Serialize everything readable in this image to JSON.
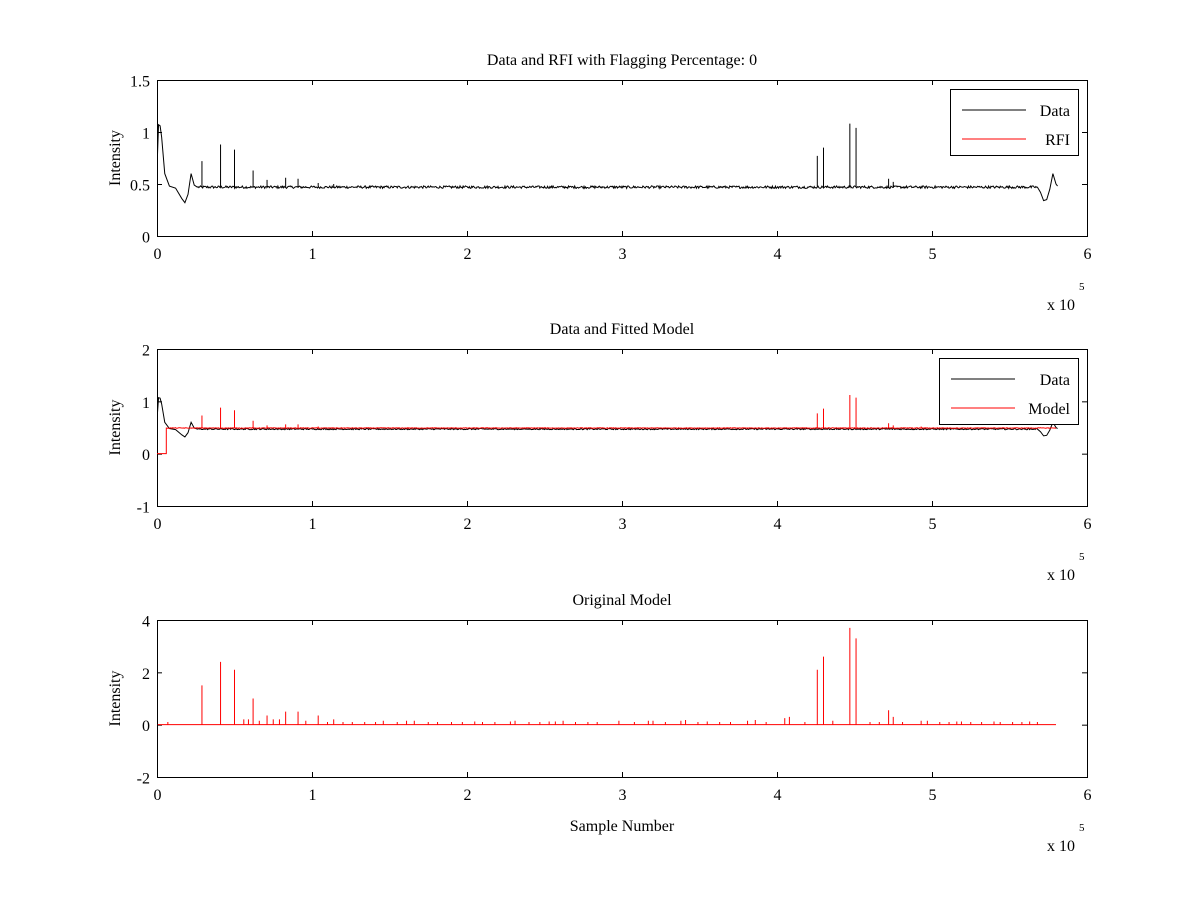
{
  "chart_data": [
    {
      "type": "line",
      "title": "Data and RFI with Flagging Percentage: 0",
      "xlabel": "",
      "ylabel": "Intensity",
      "xlim": [
        0,
        600000
      ],
      "ylim": [
        0,
        1.5
      ],
      "xticks": [
        0,
        1,
        2,
        3,
        4,
        5,
        6
      ],
      "xtick_labels": [
        "0",
        "1",
        "2",
        "3",
        "4",
        "5",
        "6"
      ],
      "yticks": [
        0,
        0.5,
        1,
        1.5
      ],
      "ytick_labels": [
        "0",
        "0.5",
        "1",
        "1.5"
      ],
      "x_exponent_base": "x 10",
      "x_exponent_power": "5",
      "legend": {
        "position": "top-right",
        "entries": [
          "Data",
          "RFI"
        ]
      },
      "series": [
        {
          "name": "Data",
          "color": "#000000",
          "baseline": 0.47,
          "start_curve": [
            [
              0,
              0.65
            ],
            [
              1000,
              1.07
            ],
            [
              2000,
              1.06
            ],
            [
              3000,
              0.95
            ],
            [
              5000,
              0.6
            ],
            [
              8000,
              0.48
            ],
            [
              12000,
              0.46
            ],
            [
              16000,
              0.36
            ],
            [
              18000,
              0.32
            ],
            [
              20000,
              0.4
            ],
            [
              22000,
              0.6
            ],
            [
              24000,
              0.49
            ],
            [
              26000,
              0.47
            ]
          ],
          "end_curve": [
            [
              568000,
              0.47
            ],
            [
              570000,
              0.42
            ],
            [
              572000,
              0.34
            ],
            [
              574000,
              0.35
            ],
            [
              576000,
              0.45
            ],
            [
              578000,
              0.6
            ],
            [
              580000,
              0.5
            ],
            [
              581000,
              0.48
            ]
          ],
          "x_end": 580000,
          "spikes": [
            [
              29000,
              0.72
            ],
            [
              41000,
              0.88
            ],
            [
              50000,
              0.83
            ],
            [
              62000,
              0.63
            ],
            [
              71000,
              0.54
            ],
            [
              83000,
              0.56
            ],
            [
              91000,
              0.55
            ],
            [
              104000,
              0.51
            ],
            [
              114000,
              0.5
            ],
            [
              426000,
              0.77
            ],
            [
              430000,
              0.85
            ],
            [
              447000,
              1.08
            ],
            [
              451000,
              1.04
            ],
            [
              472000,
              0.55
            ],
            [
              475000,
              0.52
            ]
          ]
        },
        {
          "name": "RFI",
          "color": "#ff0000",
          "values": []
        }
      ]
    },
    {
      "type": "line",
      "title": "Data and Fitted Model",
      "xlabel": "",
      "ylabel": "Intensity",
      "xlim": [
        0,
        600000
      ],
      "ylim": [
        -1,
        2
      ],
      "xticks": [
        0,
        1,
        2,
        3,
        4,
        5,
        6
      ],
      "xtick_labels": [
        "0",
        "1",
        "2",
        "3",
        "4",
        "5",
        "6"
      ],
      "yticks": [
        -1,
        0,
        1,
        2
      ],
      "ytick_labels": [
        "-1",
        "0",
        "1",
        "2"
      ],
      "x_exponent_base": "x 10",
      "x_exponent_power": "5",
      "legend": {
        "position": "top-right",
        "entries": [
          "Data",
          "Model"
        ]
      },
      "series": [
        {
          "name": "Data",
          "color": "#000000",
          "baseline": 0.47,
          "start_curve": [
            [
              0,
              0.65
            ],
            [
              1000,
              1.07
            ],
            [
              2000,
              1.06
            ],
            [
              3000,
              0.95
            ],
            [
              5000,
              0.6
            ],
            [
              8000,
              0.48
            ],
            [
              12000,
              0.46
            ],
            [
              16000,
              0.36
            ],
            [
              18000,
              0.32
            ],
            [
              20000,
              0.4
            ],
            [
              22000,
              0.6
            ],
            [
              24000,
              0.49
            ],
            [
              26000,
              0.47
            ]
          ],
          "end_curve": [
            [
              568000,
              0.47
            ],
            [
              570000,
              0.42
            ],
            [
              572000,
              0.34
            ],
            [
              574000,
              0.35
            ],
            [
              576000,
              0.45
            ],
            [
              578000,
              0.6
            ],
            [
              580000,
              0.5
            ],
            [
              581000,
              0.48
            ]
          ],
          "x_end": 580000,
          "spikes": []
        },
        {
          "name": "Model",
          "color": "#ff0000",
          "baseline": 0.49,
          "start_curve": [
            [
              0,
              0.0
            ],
            [
              6000,
              0.0
            ],
            [
              6000,
              0.49
            ]
          ],
          "end_curve": [],
          "x_end": 580000,
          "spikes": [
            [
              29000,
              0.73
            ],
            [
              41000,
              0.88
            ],
            [
              50000,
              0.83
            ],
            [
              62000,
              0.63
            ],
            [
              71000,
              0.54
            ],
            [
              83000,
              0.56
            ],
            [
              91000,
              0.56
            ],
            [
              104000,
              0.52
            ],
            [
              426000,
              0.77
            ],
            [
              430000,
              0.86
            ],
            [
              447000,
              1.12
            ],
            [
              451000,
              1.07
            ],
            [
              472000,
              0.58
            ],
            [
              475000,
              0.54
            ],
            [
              493000,
              0.52
            ]
          ]
        }
      ]
    },
    {
      "type": "line",
      "title": "Original Model",
      "xlabel": "Sample Number",
      "ylabel": "Intensity",
      "xlim": [
        0,
        600000
      ],
      "ylim": [
        -2,
        4
      ],
      "xticks": [
        0,
        1,
        2,
        3,
        4,
        5,
        6
      ],
      "xtick_labels": [
        "0",
        "1",
        "2",
        "3",
        "4",
        "5",
        "6"
      ],
      "yticks": [
        -2,
        0,
        2,
        4
      ],
      "ytick_labels": [
        "-2",
        "0",
        "2",
        "4"
      ],
      "x_exponent_base": "x 10",
      "x_exponent_power": "5",
      "series": [
        {
          "name": "Model",
          "color": "#ff0000",
          "baseline": 0.0,
          "start_curve": [],
          "end_curve": [],
          "x_end": 580000,
          "spikes": [
            [
              7000,
              0.1
            ],
            [
              29000,
              1.5
            ],
            [
              41000,
              2.4
            ],
            [
              50000,
              2.1
            ],
            [
              56000,
              0.2
            ],
            [
              59000,
              0.2
            ],
            [
              62000,
              1.0
            ],
            [
              66000,
              0.15
            ],
            [
              71000,
              0.35
            ],
            [
              75000,
              0.2
            ],
            [
              79000,
              0.2
            ],
            [
              83000,
              0.5
            ],
            [
              91000,
              0.5
            ],
            [
              96000,
              0.15
            ],
            [
              104000,
              0.35
            ],
            [
              110000,
              0.1
            ],
            [
              114000,
              0.2
            ],
            [
              120000,
              0.1
            ],
            [
              126000,
              0.1
            ],
            [
              134000,
              0.1
            ],
            [
              141000,
              0.1
            ],
            [
              146000,
              0.15
            ],
            [
              155000,
              0.1
            ],
            [
              161000,
              0.15
            ],
            [
              166000,
              0.15
            ],
            [
              175000,
              0.1
            ],
            [
              181000,
              0.1
            ],
            [
              190000,
              0.1
            ],
            [
              197000,
              0.1
            ],
            [
              205000,
              0.12
            ],
            [
              210000,
              0.1
            ],
            [
              218000,
              0.1
            ],
            [
              228000,
              0.12
            ],
            [
              231000,
              0.15
            ],
            [
              240000,
              0.1
            ],
            [
              247000,
              0.1
            ],
            [
              253000,
              0.12
            ],
            [
              257000,
              0.12
            ],
            [
              262000,
              0.15
            ],
            [
              270000,
              0.1
            ],
            [
              278000,
              0.1
            ],
            [
              284000,
              0.1
            ],
            [
              298000,
              0.15
            ],
            [
              308000,
              0.1
            ],
            [
              317000,
              0.15
            ],
            [
              320000,
              0.15
            ],
            [
              328000,
              0.1
            ],
            [
              338000,
              0.15
            ],
            [
              341000,
              0.18
            ],
            [
              349000,
              0.1
            ],
            [
              355000,
              0.12
            ],
            [
              363000,
              0.1
            ],
            [
              370000,
              0.1
            ],
            [
              381000,
              0.15
            ],
            [
              386000,
              0.18
            ],
            [
              393000,
              0.1
            ],
            [
              405000,
              0.25
            ],
            [
              408000,
              0.3
            ],
            [
              418000,
              0.1
            ],
            [
              426000,
              2.1
            ],
            [
              430000,
              2.6
            ],
            [
              436000,
              0.15
            ],
            [
              447000,
              3.7
            ],
            [
              451000,
              3.3
            ],
            [
              460000,
              0.1
            ],
            [
              466000,
              0.1
            ],
            [
              472000,
              0.55
            ],
            [
              475000,
              0.3
            ],
            [
              481000,
              0.1
            ],
            [
              493000,
              0.15
            ],
            [
              497000,
              0.15
            ],
            [
              505000,
              0.1
            ],
            [
              511000,
              0.1
            ],
            [
              516000,
              0.12
            ],
            [
              519000,
              0.12
            ],
            [
              525000,
              0.1
            ],
            [
              532000,
              0.1
            ],
            [
              540000,
              0.12
            ],
            [
              544000,
              0.1
            ],
            [
              552000,
              0.1
            ],
            [
              558000,
              0.1
            ],
            [
              563000,
              0.12
            ],
            [
              568000,
              0.1
            ]
          ]
        }
      ]
    }
  ]
}
